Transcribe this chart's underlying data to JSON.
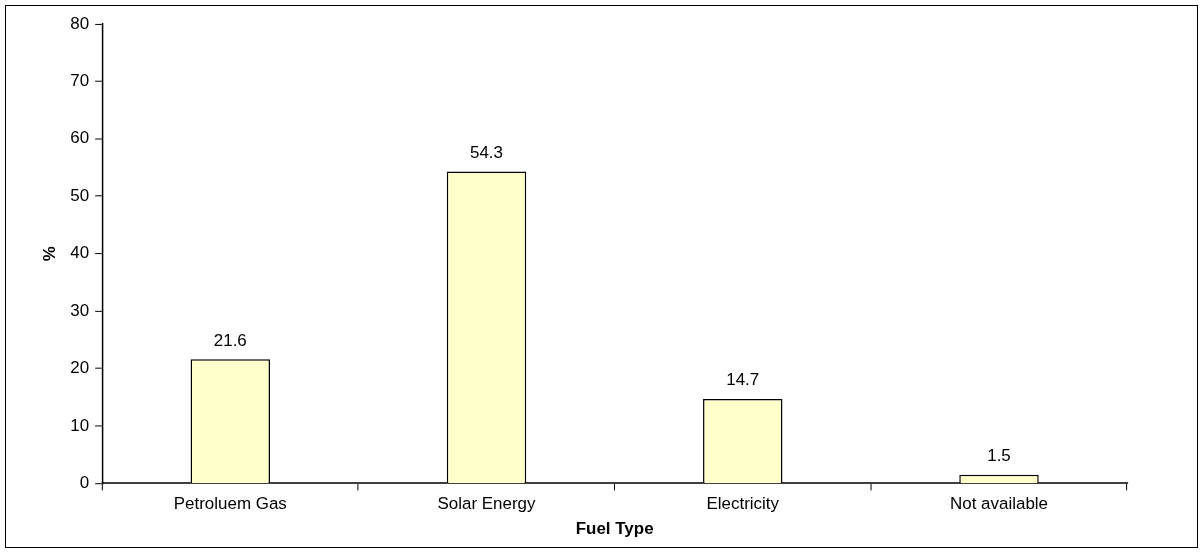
{
  "chart_data": {
    "type": "bar",
    "xlabel": "Fuel Type",
    "ylabel": "%",
    "categories": [
      "Petroluem Gas",
      "Solar Energy",
      "Electricity",
      "Not available"
    ],
    "values": [
      21.6,
      54.3,
      14.7,
      1.5
    ],
    "color": "#ffffcc",
    "ylim": [
      0,
      80
    ],
    "yticks": [
      0,
      10,
      20,
      30,
      40,
      50,
      60,
      70,
      80
    ],
    "grid": false,
    "legend": false,
    "data_labels": true
  }
}
